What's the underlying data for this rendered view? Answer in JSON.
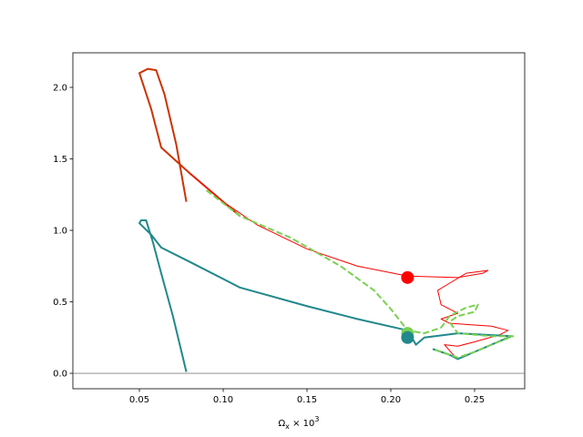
{
  "chart_data": {
    "type": "line",
    "xlabel": {
      "base": "Ω",
      "sub": "x",
      "mid": " × 10",
      "sup": "3"
    },
    "xlim": [
      0.0103,
      0.2799
    ],
    "ylim": [
      -0.108,
      2.242
    ],
    "xticks": [
      0.05,
      {
        "value": 0.1,
        "label": "0.10"
      },
      0.15,
      {
        "value": 0.2,
        "label": "0.20"
      },
      0.25
    ],
    "yticks": [
      {
        "value": 0,
        "label": "0.0"
      },
      0.5,
      {
        "value": 1,
        "label": "1.0"
      },
      1.5,
      {
        "value": 2,
        "label": "2.0"
      }
    ],
    "hline": {
      "y": 0,
      "color": "#808080"
    },
    "series": [
      {
        "color": "#cc3300",
        "linewidth": 2,
        "dashed": false,
        "x": [
          0.078,
          0.072,
          0.065,
          0.06,
          0.055,
          0.05,
          0.057,
          0.063,
          0.08,
          0.1,
          0.11
        ],
        "y": [
          1.2,
          1.6,
          1.95,
          2.12,
          2.13,
          2.1,
          1.85,
          1.58,
          1.4,
          1.2,
          1.1
        ]
      },
      {
        "color": "#ff0000",
        "linewidth": 1,
        "dashed": false,
        "x": [
          0.08,
          0.1,
          0.12,
          0.15,
          0.18,
          0.21,
          0.24,
          0.255,
          0.258,
          0.245,
          0.235,
          0.228,
          0.23,
          0.24,
          0.23,
          0.235,
          0.26,
          0.27,
          0.265,
          0.25,
          0.24,
          0.232,
          0.238
        ],
        "y": [
          1.4,
          1.2,
          1.04,
          0.87,
          0.75,
          0.68,
          0.67,
          0.7,
          0.72,
          0.7,
          0.63,
          0.58,
          0.48,
          0.42,
          0.38,
          0.35,
          0.33,
          0.3,
          0.27,
          0.22,
          0.19,
          0.2,
          0.12
        ]
      },
      {
        "color": "#21888c",
        "linewidth": 2,
        "dashed": false,
        "x": [
          0.078,
          0.07,
          0.063,
          0.058,
          0.054,
          0.051,
          0.05,
          0.057,
          0.063,
          0.08,
          0.11,
          0.15,
          0.18,
          0.21,
          0.215,
          0.22,
          0.24,
          0.272,
          0.26,
          0.25,
          0.24,
          0.235,
          0.225
        ],
        "y": [
          0.01,
          0.4,
          0.7,
          0.92,
          1.07,
          1.07,
          1.05,
          0.97,
          0.88,
          0.78,
          0.6,
          0.47,
          0.38,
          0.3,
          0.2,
          0.25,
          0.28,
          0.26,
          0.2,
          0.15,
          0.1,
          0.13,
          0.17
        ]
      },
      {
        "color": "#7ad151",
        "linewidth": 2,
        "dashed": true,
        "x": [
          0.09,
          0.11,
          0.14,
          0.17,
          0.19,
          0.2,
          0.21,
          0.22,
          0.23,
          0.235,
          0.245,
          0.252,
          0.25,
          0.24,
          0.235,
          0.24,
          0.26,
          0.273,
          0.26,
          0.25,
          0.24,
          0.235,
          0.225
        ],
        "y": [
          1.28,
          1.1,
          0.95,
          0.75,
          0.58,
          0.45,
          0.3,
          0.28,
          0.32,
          0.4,
          0.46,
          0.48,
          0.43,
          0.4,
          0.36,
          0.28,
          0.26,
          0.26,
          0.2,
          0.15,
          0.11,
          0.13,
          0.17
        ]
      }
    ],
    "markers": [
      {
        "x": 0.21,
        "y": 0.67,
        "color": "#ff0000"
      },
      {
        "x": 0.21,
        "y": 0.28,
        "color": "#7ad151"
      },
      {
        "x": 0.21,
        "y": 0.25,
        "color": "#21888c"
      }
    ]
  }
}
